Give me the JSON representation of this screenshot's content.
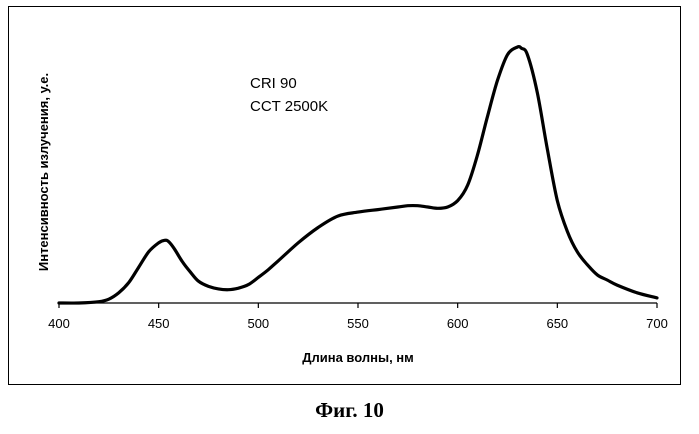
{
  "caption": "Фиг. 10",
  "chart_data": {
    "type": "line",
    "xlabel": "Длина волны, нм",
    "ylabel": "Интенсивность излучения, у.е.",
    "xlim": [
      400,
      700
    ],
    "ylim": [
      0,
      1.0
    ],
    "xticks": [
      400,
      450,
      500,
      550,
      600,
      650,
      700
    ],
    "y_tick_labels_shown": false,
    "grid": false,
    "annotations": [
      "CRI 90",
      "CCT 2500K"
    ],
    "series": [
      {
        "x": [
          400,
          410,
          420,
          425,
          430,
          435,
          440,
          445,
          450,
          453,
          455,
          458,
          462,
          466,
          470,
          475,
          480,
          485,
          490,
          495,
          500,
          505,
          510,
          520,
          530,
          540,
          550,
          560,
          570,
          575,
          580,
          585,
          590,
          595,
          600,
          605,
          610,
          615,
          620,
          625,
          630,
          632,
          635,
          640,
          645,
          650,
          655,
          660,
          665,
          670,
          675,
          680,
          690,
          700
        ],
        "y": [
          0.0,
          0.0,
          0.005,
          0.015,
          0.04,
          0.08,
          0.14,
          0.2,
          0.235,
          0.245,
          0.24,
          0.21,
          0.16,
          0.12,
          0.085,
          0.065,
          0.055,
          0.052,
          0.058,
          0.072,
          0.1,
          0.13,
          0.165,
          0.235,
          0.295,
          0.34,
          0.355,
          0.365,
          0.375,
          0.38,
          0.38,
          0.375,
          0.37,
          0.375,
          0.4,
          0.46,
          0.58,
          0.73,
          0.87,
          0.97,
          1.0,
          0.995,
          0.97,
          0.82,
          0.6,
          0.4,
          0.28,
          0.2,
          0.15,
          0.11,
          0.09,
          0.07,
          0.04,
          0.02
        ]
      }
    ]
  }
}
